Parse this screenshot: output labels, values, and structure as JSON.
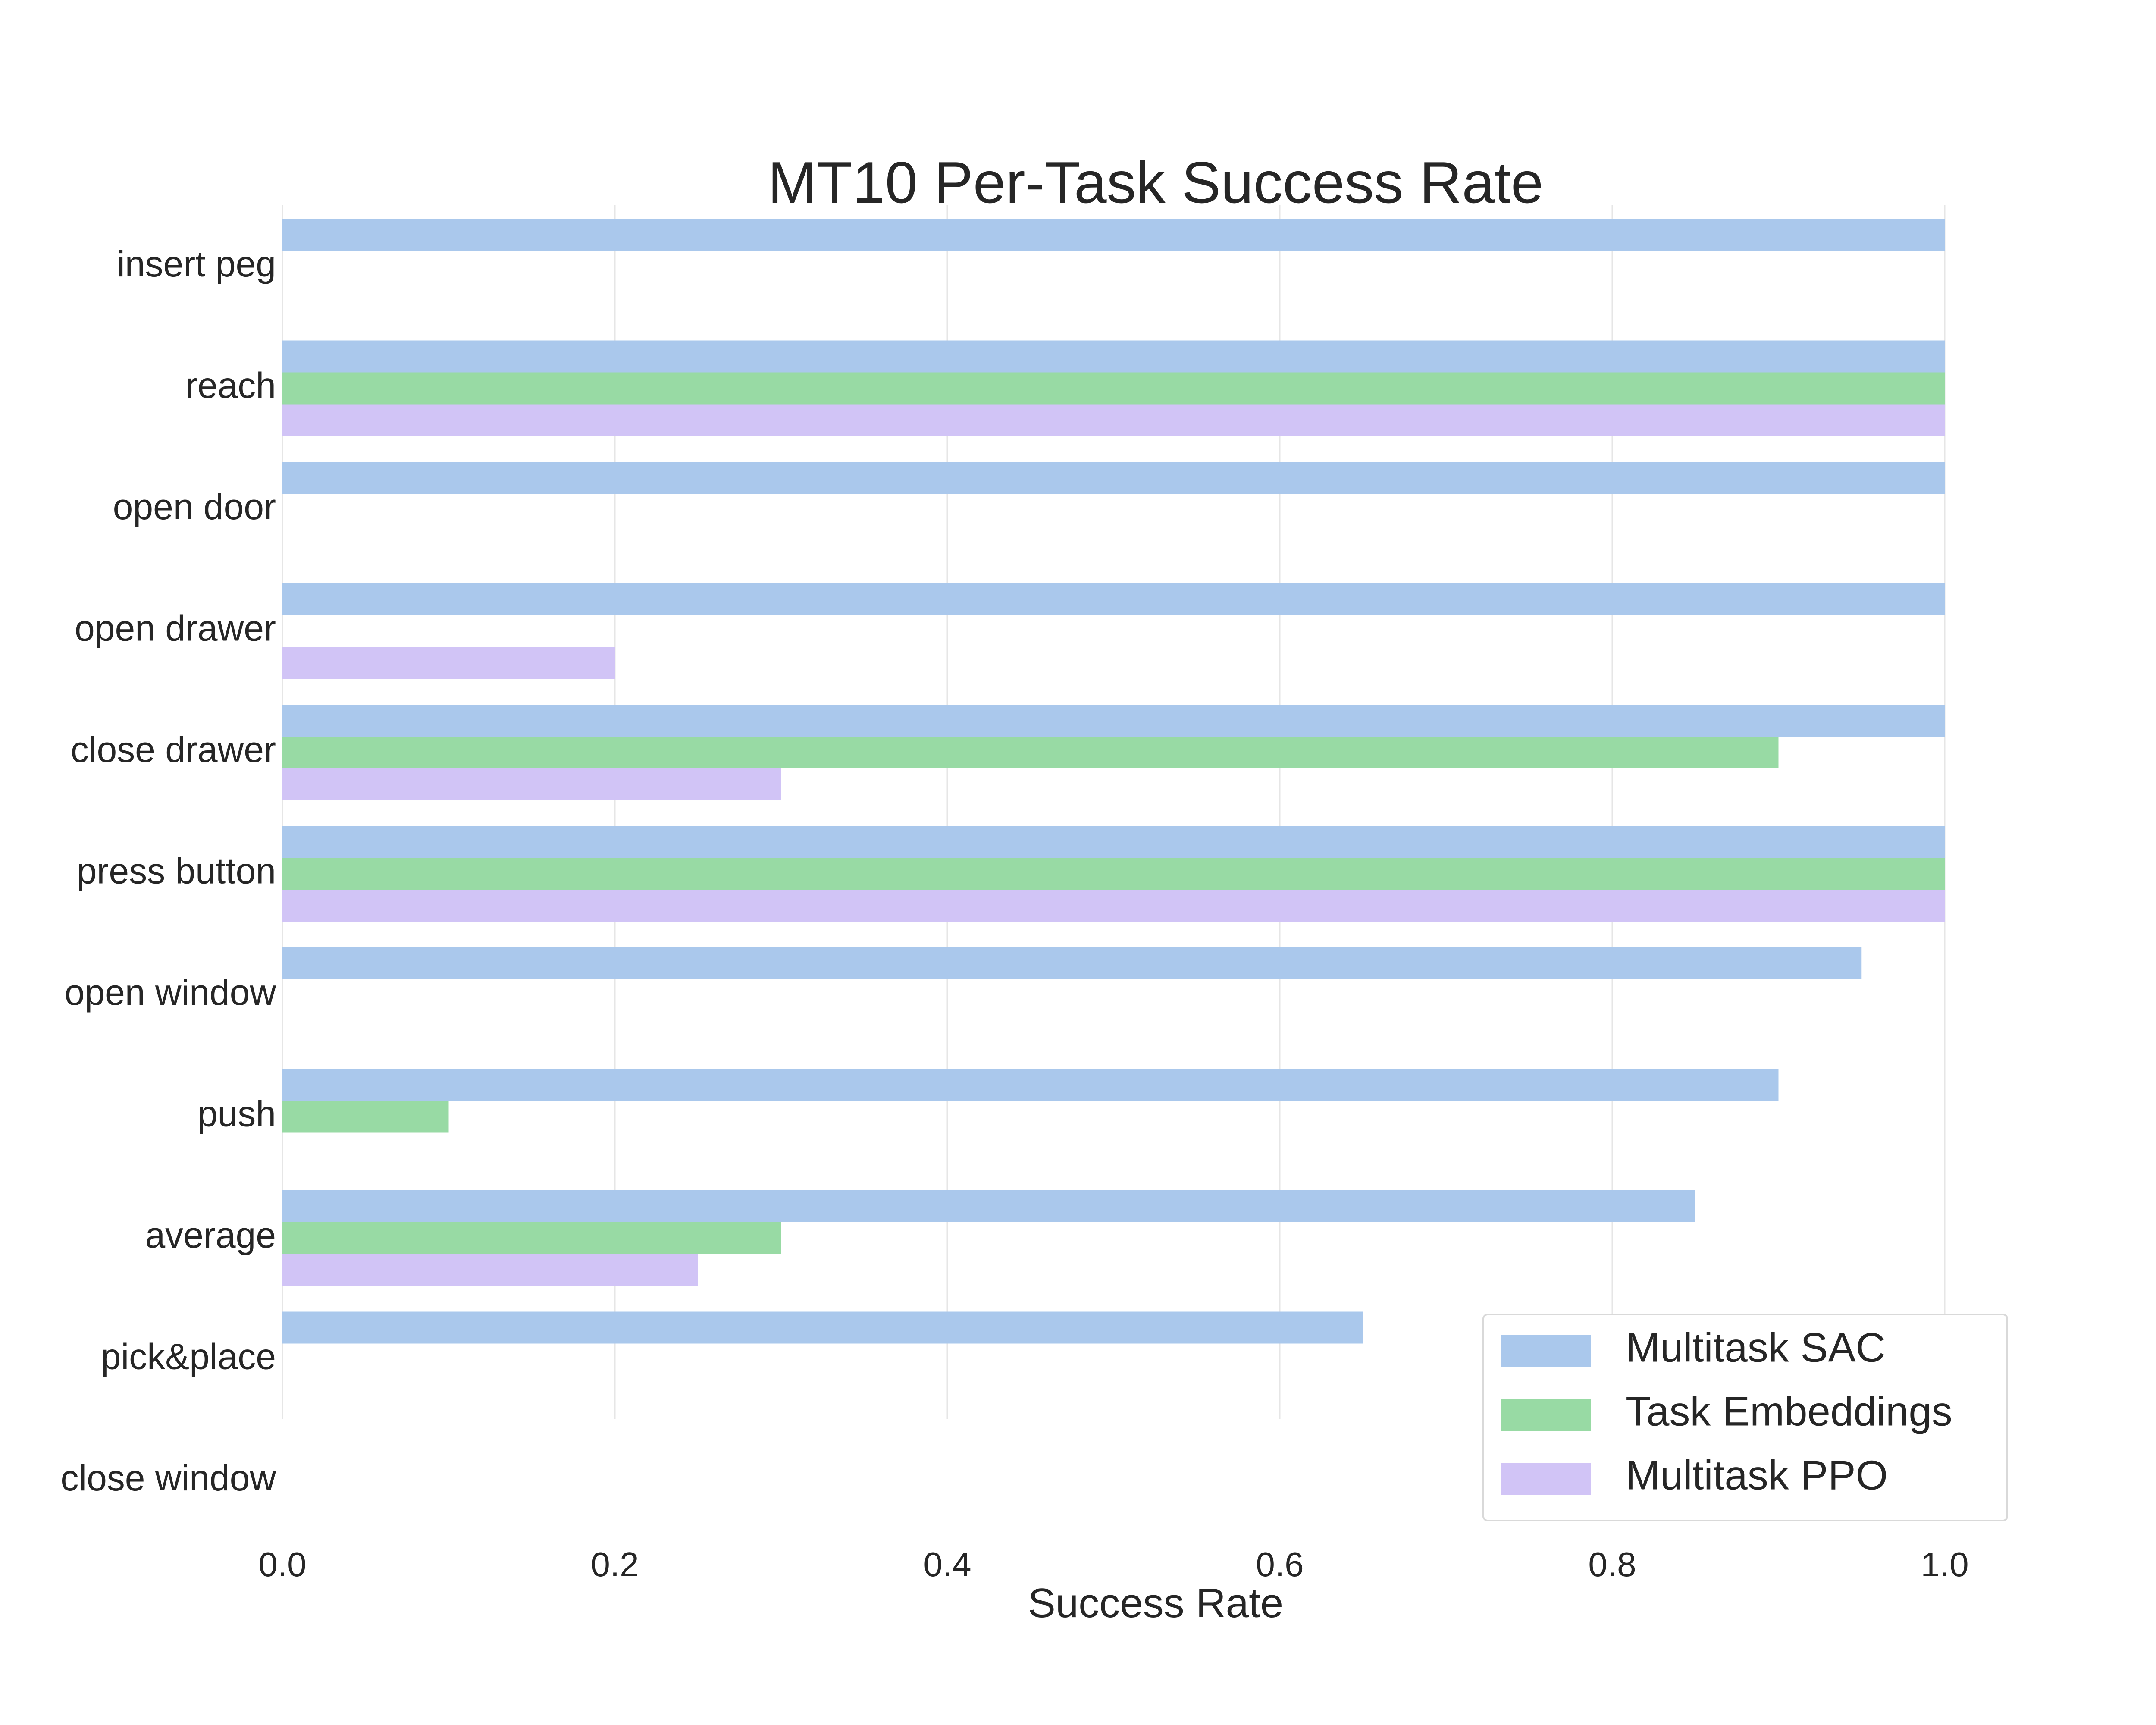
{
  "chart_data": {
    "type": "bar",
    "orientation": "horizontal",
    "title": "MT10 Per-Task Success Rate",
    "xlabel": "Success Rate",
    "ylabel": "",
    "xlim": [
      0,
      1.0
    ],
    "x_ticks": [
      "0.0",
      "0.2",
      "0.4",
      "0.6",
      "0.8",
      "1.0"
    ],
    "grid": "vertical",
    "legend_position": "lower-right",
    "categories": [
      "insert peg",
      "reach",
      "open door",
      "open drawer",
      "close drawer",
      "press button",
      "open window",
      "push",
      "average",
      "pick&place",
      "close window"
    ],
    "series": [
      {
        "name": "Multitask SAC",
        "color": "#aac8ec",
        "values": [
          1.0,
          1.0,
          1.0,
          1.0,
          1.0,
          1.0,
          0.95,
          0.9,
          0.85,
          0.65,
          0.0
        ]
      },
      {
        "name": "Task Embeddings",
        "color": "#98daa4",
        "values": [
          0.0,
          1.0,
          0.0,
          0.0,
          0.9,
          1.0,
          0.0,
          0.1,
          0.3,
          0.0,
          0.0
        ]
      },
      {
        "name": "Multitask PPO",
        "color": "#d1c4f6",
        "values": [
          0.0,
          1.0,
          0.0,
          0.2,
          0.3,
          1.0,
          0.0,
          0.0,
          0.25,
          0.0,
          0.0
        ]
      }
    ]
  }
}
